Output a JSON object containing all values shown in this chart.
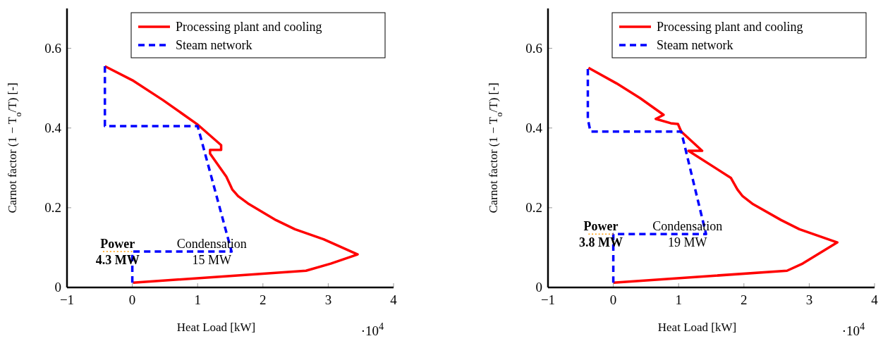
{
  "chart_data": [
    {
      "type": "line",
      "xlabel": "Heat Load [kW]",
      "ylabel": "Carnot factor (1 − T$_{o}$/T) [-]",
      "xlim": [
        -1,
        4
      ],
      "ylim": [
        0,
        0.7
      ],
      "xticks": [
        -1,
        0,
        1,
        2,
        3,
        4
      ],
      "yticks": [
        0,
        0.2,
        0.4,
        0.6
      ],
      "legend": "top right",
      "annotations": [
        "Power",
        "4.3 MW",
        "Condensation",
        "15 MW",
        "·10$^{4}$"
      ],
      "series": [
        {
          "name": "Processing plant and cooling",
          "color": "#ff0000",
          "line_style": "solid",
          "x": [
            -0.42,
            0,
            0.47,
            0.99,
            1.36,
            1.36,
            1.19,
            1.19,
            1.44,
            1.53,
            1.62,
            1.77,
            2.2,
            2.49,
            2.93,
            3.45,
            3.04,
            2.66,
            0.01
          ],
          "values": [
            0.555,
            0.52,
            0.47,
            0.41,
            0.357,
            0.345,
            0.345,
            0.336,
            0.278,
            0.246,
            0.229,
            0.211,
            0.169,
            0.146,
            0.121,
            0.083,
            0.06,
            0.042,
            0.012
          ]
        },
        {
          "name": "Steam network",
          "color": "#0000ff",
          "line_style": "dashed",
          "x": [
            -0.42,
            -0.42,
            1.0,
            1.52,
            0,
            0
          ],
          "values": [
            0.555,
            0.405,
            0.405,
            0.09,
            0.09,
            0.012
          ]
        },
        {
          "color": "#ff9900",
          "line_style": "dotted",
          "x": [
            -0.45,
            0
          ],
          "values": [
            0.09,
            0.09
          ]
        }
      ]
    },
    {
      "type": "line",
      "xlabel": "Heat Load [kW]",
      "ylabel": "Carnot factor (1 − T$_{o}$/T) [-]",
      "xlim": [
        -1,
        4
      ],
      "ylim": [
        0,
        0.7
      ],
      "xticks": [
        -1,
        0,
        1,
        2,
        3,
        4
      ],
      "yticks": [
        0,
        0.2,
        0.4,
        0.6
      ],
      "legend": "top right",
      "annotations": [
        "Power",
        "3.8 MW",
        "Condensation",
        "19 MW",
        "·10$^{4}$"
      ],
      "series": [
        {
          "name": "Processing plant and cooling",
          "color": "#ff0000",
          "line_style": "solid",
          "x": [
            -0.38,
            0.05,
            0.41,
            0.77,
            0.65,
            0.88,
            0.99,
            1.04,
            1.36,
            1.15,
            1.8,
            1.9,
            1.98,
            2.14,
            2.57,
            2.85,
            3.43,
            2.9,
            2.66,
            0
          ],
          "values": [
            0.551,
            0.512,
            0.475,
            0.433,
            0.423,
            0.412,
            0.41,
            0.391,
            0.343,
            0.343,
            0.275,
            0.246,
            0.229,
            0.209,
            0.169,
            0.146,
            0.113,
            0.06,
            0.042,
            0.012
          ]
        },
        {
          "name": "Steam network",
          "color": "#0000ff",
          "line_style": "dashed",
          "x": [
            -0.39,
            -0.39,
            -0.35,
            1.04,
            1.42,
            0,
            0
          ],
          "values": [
            0.548,
            0.423,
            0.391,
            0.391,
            0.134,
            0.134,
            0.012
          ]
        },
        {
          "color": "#ff9900",
          "line_style": "dotted",
          "x": [
            -0.38,
            0
          ],
          "values": [
            0.134,
            0.134
          ]
        }
      ]
    }
  ]
}
